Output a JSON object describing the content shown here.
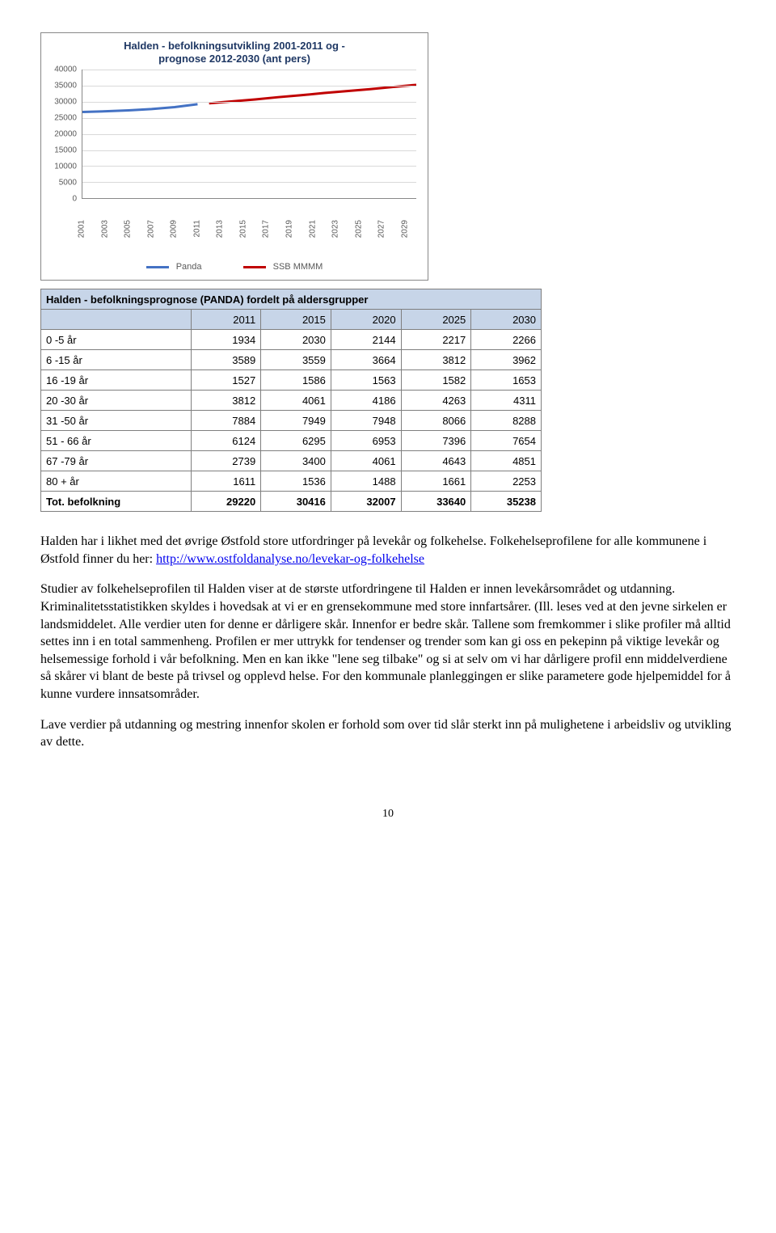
{
  "chart": {
    "type": "line",
    "title_line1": "Halden - befolkningsutvikling 2001-2011 og -",
    "title_line2": "prognose 2012-2030 (ant pers)",
    "title_color": "#1f3864",
    "ylim": [
      0,
      40000
    ],
    "ytick_step": 5000,
    "yticks": [
      "0",
      "5000",
      "10000",
      "15000",
      "20000",
      "25000",
      "30000",
      "35000",
      "40000"
    ],
    "x_years": [
      "2001",
      "2003",
      "2005",
      "2007",
      "2009",
      "2011",
      "2013",
      "2015",
      "2017",
      "2019",
      "2021",
      "2023",
      "2025",
      "2027",
      "2029"
    ],
    "series": [
      {
        "name": "Panda",
        "color": "#4472c4",
        "width": 3,
        "points": [
          {
            "x": 2001,
            "y": 26800
          },
          {
            "x": 2003,
            "y": 27000
          },
          {
            "x": 2005,
            "y": 27300
          },
          {
            "x": 2007,
            "y": 27700
          },
          {
            "x": 2009,
            "y": 28300
          },
          {
            "x": 2011,
            "y": 29220
          }
        ]
      },
      {
        "name": "SSB MMMM",
        "color": "#c00000",
        "width": 3,
        "points": [
          {
            "x": 2012,
            "y": 29500
          },
          {
            "x": 2014,
            "y": 30100
          },
          {
            "x": 2016,
            "y": 30700
          },
          {
            "x": 2018,
            "y": 31400
          },
          {
            "x": 2020,
            "y": 32007
          },
          {
            "x": 2022,
            "y": 32700
          },
          {
            "x": 2024,
            "y": 33300
          },
          {
            "x": 2026,
            "y": 33900
          },
          {
            "x": 2028,
            "y": 34600
          },
          {
            "x": 2030,
            "y": 35238
          }
        ]
      }
    ],
    "grid_color": "#d9d9d9",
    "axis_color": "#888888",
    "label_color": "#595959",
    "label_fontsize": 10,
    "x_domain": [
      2001,
      2030
    ]
  },
  "table": {
    "title": "Halden - befolkningsprognose (PANDA) fordelt på aldersgrupper",
    "header_bg": "#c7d5e8",
    "columns": [
      "2011",
      "2015",
      "2020",
      "2025",
      "2030"
    ],
    "rows": [
      {
        "label": "0 -5 år",
        "cells": [
          "1934",
          "2030",
          "2144",
          "2217",
          "2266"
        ]
      },
      {
        "label": "6 -15 år",
        "cells": [
          "3589",
          "3559",
          "3664",
          "3812",
          "3962"
        ]
      },
      {
        "label": "16 -19 år",
        "cells": [
          "1527",
          "1586",
          "1563",
          "1582",
          "1653"
        ]
      },
      {
        "label": "20 -30 år",
        "cells": [
          "3812",
          "4061",
          "4186",
          "4263",
          "4311"
        ]
      },
      {
        "label": "31 -50 år",
        "cells": [
          "7884",
          "7949",
          "7948",
          "8066",
          "8288"
        ]
      },
      {
        "label": "51 - 66 år",
        "cells": [
          "6124",
          "6295",
          "6953",
          "7396",
          "7654"
        ]
      },
      {
        "label": "67 -79 år",
        "cells": [
          "2739",
          "3400",
          "4061",
          "4643",
          "4851"
        ]
      },
      {
        "label": "80 + år",
        "cells": [
          "1611",
          "1536",
          "1488",
          "1661",
          "2253"
        ]
      }
    ],
    "total": {
      "label": "Tot. befolkning",
      "cells": [
        "29220",
        "30416",
        "32007",
        "33640",
        "35238"
      ]
    }
  },
  "body": {
    "p1_a": "Halden har i likhet med det øvrige Østfold store utfordringer på levekår og folkehelse. Folkehelseprofilene for alle kommunene i Østfold finner du her: ",
    "link_text": "http://www.ostfoldanalyse.no/levekar-og-folkehelse",
    "p1_b": "Studier av folkehelseprofilen til Halden viser at de største utfordringene til Halden er innen levekårsområdet og utdanning. Kriminalitetsstatistikken skyldes i hovedsak at vi er en grensekommune med store innfartsårer. (Ill. leses ved at den jevne sirkelen er landsmiddelet. Alle verdier uten for denne er dårligere skår. Innenfor er bedre skår. Tallene som fremkommer i slike profiler må alltid settes inn i en total sammenheng. Profilen er mer uttrykk for tendenser og trender som kan gi oss en pekepinn på viktige levekår og helsemessige forhold i vår befolkning. Men en kan ikke \"lene seg tilbake\" og si at selv om vi har dårligere profil enn middelverdiene så skårer vi blant de beste på trivsel og opplevd helse. For den kommunale planleggingen er slike parametere gode hjelpemiddel for å kunne vurdere innsatsområder.",
    "p2": "Lave verdier på utdanning og mestring innenfor skolen er forhold som over tid slår sterkt inn på mulighetene i arbeidsliv og utvikling av dette."
  },
  "page_number": "10"
}
